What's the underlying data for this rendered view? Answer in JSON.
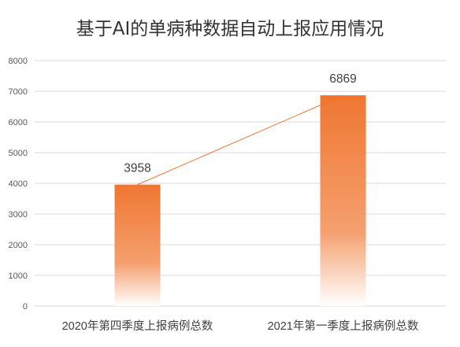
{
  "chart_data": {
    "type": "bar",
    "title": "基于AI的单病种数据自动上报应用情况",
    "categories": [
      "2020年第四季度上报病例总数",
      "2021年第一季度上报病例总数"
    ],
    "values": [
      3958,
      6869
    ],
    "data_labels": [
      "3958",
      "6869"
    ],
    "ylim": [
      0,
      8000
    ],
    "yticks": [
      0,
      1000,
      2000,
      3000,
      4000,
      5000,
      6000,
      7000,
      8000
    ],
    "ytick_labels": [
      "0",
      "1000",
      "2000",
      "3000",
      "4000",
      "5000",
      "6000",
      "7000",
      "8000"
    ],
    "grid": true,
    "trend_line": true,
    "colors": {
      "bar_top": "#EF7631",
      "bar_mid": "#F5A06F",
      "bar_bottom": "#FFFFFF",
      "trend_line": "#EF7631",
      "grid": "#D9D9D9"
    }
  }
}
